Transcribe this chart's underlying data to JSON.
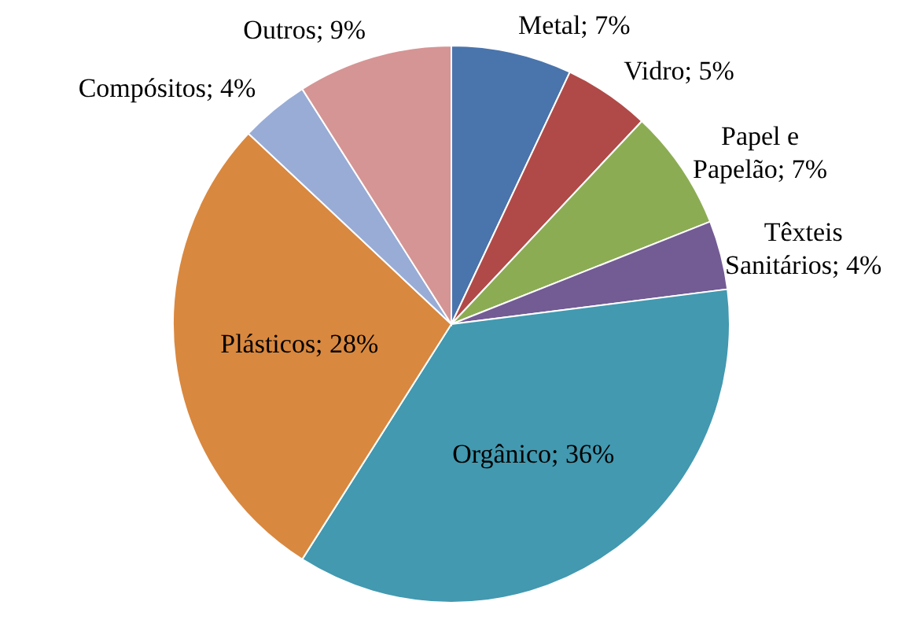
{
  "chart_data": {
    "type": "pie",
    "categories": [
      "Metal",
      "Vidro",
      "Papel e Papelão",
      "Têxteis Sanitários",
      "Orgânico",
      "Plásticos",
      "Compósitos",
      "Outros"
    ],
    "values": [
      7,
      5,
      7,
      4,
      36,
      28,
      4,
      9
    ],
    "colors": [
      "#4a74ac",
      "#b04a48",
      "#8cac54",
      "#735b94",
      "#4299b0",
      "#d9883f",
      "#98acd6",
      "#d59594"
    ],
    "value_labels": [
      "7%",
      "5%",
      "7%",
      "4%",
      "36%",
      "28%",
      "4%",
      "9%"
    ]
  }
}
